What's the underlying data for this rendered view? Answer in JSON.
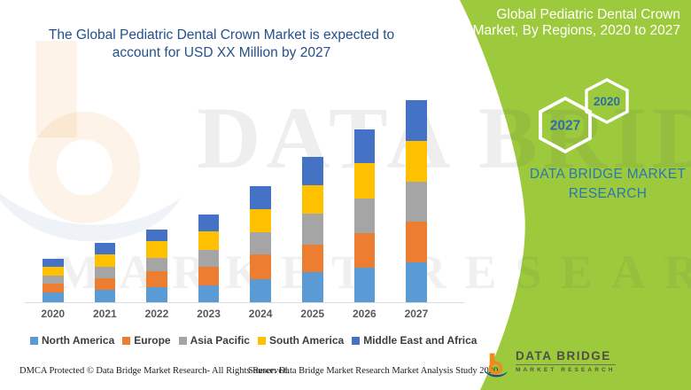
{
  "header": {
    "main_title_lines": [
      "The Global Pediatric Dental Crown Market is expected to",
      "account for USD XX Million by 2027"
    ]
  },
  "side_panel": {
    "title_lines": [
      "Global Pediatric Dental Crown",
      "Market, By Regions, 2020 to 2027"
    ],
    "hexagons": [
      {
        "label": "2027"
      },
      {
        "label": "2020"
      }
    ],
    "brand": "DATA BRIDGE MARKET RESEARCH"
  },
  "chart_data": {
    "type": "bar",
    "stacked": true,
    "title": "Global Pediatric Dental Crown Market, By Regions, 2020 to 2027",
    "categories": [
      "2020",
      "2021",
      "2022",
      "2023",
      "2024",
      "2025",
      "2026",
      "2027"
    ],
    "series": [
      {
        "name": "North America",
        "color": "#5B9BD5",
        "values": [
          11,
          14,
          17,
          19,
          26,
          34,
          39,
          45
        ]
      },
      {
        "name": "Europe",
        "color": "#ED7D31",
        "values": [
          10.5,
          13.5,
          18,
          21,
          28,
          31.5,
          39,
          46
        ]
      },
      {
        "name": "Asia Pacific",
        "color": "#A5A5A5",
        "values": [
          9,
          12.5,
          15,
          19,
          25,
          35,
          39,
          45
        ]
      },
      {
        "name": "South America",
        "color": "#FFC000",
        "values": [
          9.5,
          14.5,
          19,
          21,
          26.5,
          31.5,
          40,
          46.5
        ]
      },
      {
        "name": "Middle East and Africa",
        "color": "#4472C4",
        "values": [
          9.5,
          12.5,
          13.5,
          19,
          25.5,
          32.5,
          38.5,
          45.5
        ]
      }
    ],
    "value_axis_labeled": false,
    "value_unit": "relative height units (no numeric axis shown, values labeled USD XX Million)",
    "legend_position": "bottom",
    "grid": false
  },
  "watermark": {
    "line1": "DATA BRIDGE",
    "line2": "MARKET RESEARCH"
  },
  "footer": {
    "dmca": "DMCA Protected © Data Bridge Market Research- All Rights Reserved.",
    "source": "Source: Data Bridge Market Research Market Analysis Study 2020",
    "logo_title": "DATA BRIDGE",
    "logo_subtitle": "MARKET RESEARCH"
  },
  "colors": {
    "green_panel": "#9CCA3C",
    "headline_blue": "#24508C",
    "hexagon_text_blue": "#2F6DA8",
    "brand_blue": "#2B76B5",
    "axis_gray": "#DBDBDB",
    "legend_text": "#3D3D3D",
    "logo_orange": "#F08A1E",
    "logo_navy": "#1F4C8B"
  }
}
